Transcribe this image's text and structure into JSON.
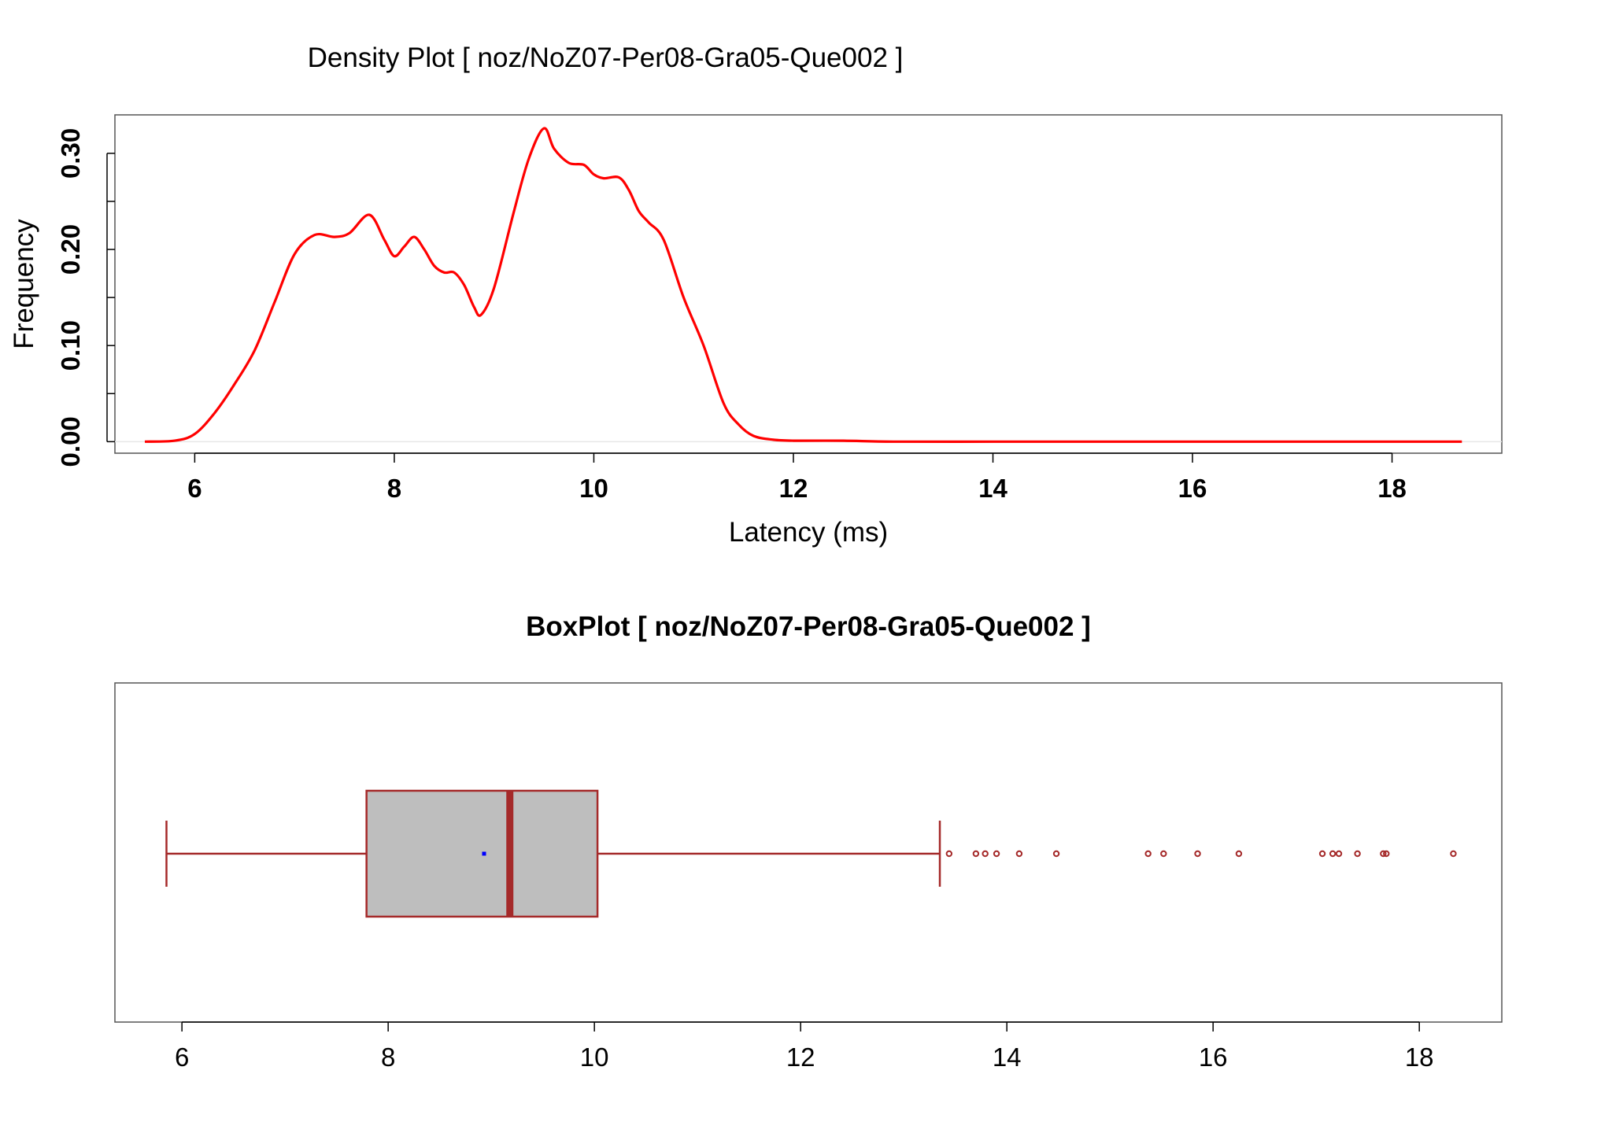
{
  "chart_data": [
    {
      "type": "line",
      "title": "Density Plot [ noz/NoZ07-Per08-Gra05-Que002 ]",
      "xlabel": "Latency (ms)",
      "ylabel": "Frequency",
      "xlim": [
        5.2,
        19.1
      ],
      "ylim": [
        -0.012,
        0.34
      ],
      "x_ticks": [
        "6",
        "8",
        "10",
        "12",
        "14",
        "16",
        "18"
      ],
      "y_ticks": [
        "0.00",
        "0.10",
        "0.20",
        "0.30"
      ],
      "line_color": "#ff0000",
      "series": [
        {
          "x": [
            5.5,
            5.8,
            6.0,
            6.2,
            6.4,
            6.6,
            6.8,
            7.0,
            7.2,
            7.4,
            7.55,
            7.75,
            7.9,
            8.0,
            8.1,
            8.2,
            8.3,
            8.4,
            8.5,
            8.6,
            8.7,
            8.8,
            8.87,
            9.0,
            9.2,
            9.35,
            9.5,
            9.6,
            9.75,
            9.9,
            10.0,
            10.1,
            10.25,
            10.35,
            10.45,
            10.55,
            10.7,
            10.9,
            11.1,
            11.3,
            11.45,
            11.6,
            11.8,
            12.0,
            12.5,
            13.0,
            14.0,
            15.0,
            16.0,
            17.0,
            18.0,
            18.7
          ],
          "y": [
            0.0,
            0.001,
            0.008,
            0.03,
            0.06,
            0.095,
            0.145,
            0.195,
            0.215,
            0.213,
            0.217,
            0.236,
            0.21,
            0.193,
            0.203,
            0.213,
            0.2,
            0.183,
            0.176,
            0.176,
            0.163,
            0.14,
            0.132,
            0.16,
            0.24,
            0.295,
            0.326,
            0.305,
            0.29,
            0.288,
            0.278,
            0.274,
            0.275,
            0.262,
            0.24,
            0.228,
            0.21,
            0.15,
            0.1,
            0.04,
            0.018,
            0.006,
            0.002,
            0.001,
            0.001,
            0.0,
            0.0,
            0.0,
            0.0,
            0.0,
            0.0,
            0.0
          ]
        }
      ]
    },
    {
      "type": "box",
      "title": "BoxPlot [ noz/NoZ07-Per08-Gra05-Que002 ]",
      "xlim": [
        5.35,
        18.8
      ],
      "x_ticks": [
        "6",
        "8",
        "10",
        "12",
        "14",
        "16",
        "18"
      ],
      "box_color": "#a52a2a",
      "box_fill": "#bebebe",
      "mean_color": "#0000ff",
      "stats": {
        "whisker_low": 5.85,
        "q1": 7.79,
        "median": 9.18,
        "q3": 10.03,
        "whisker_high": 13.35,
        "mean": 8.93
      },
      "outliers": [
        13.44,
        13.7,
        13.79,
        13.9,
        14.12,
        14.48,
        15.37,
        15.52,
        15.85,
        16.25,
        17.06,
        17.16,
        17.22,
        17.4,
        17.65,
        17.68,
        18.33
      ]
    }
  ]
}
